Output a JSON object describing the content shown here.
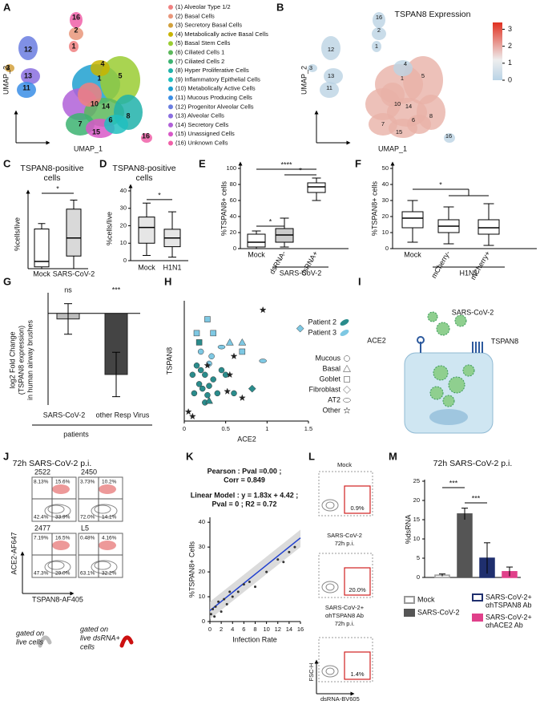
{
  "panels": {
    "a": {
      "letter": "A",
      "x_label": "UMAP_1",
      "y_label": "UMAP_2",
      "cluster_labels": [
        "16",
        "2",
        "1",
        "12",
        "3",
        "13",
        "11",
        "4",
        "1",
        "5",
        "10",
        "14",
        "6",
        "8",
        "7",
        "15",
        "16"
      ],
      "legend": [
        "(1) Alveolar Type 1/2",
        "(2) Basal Cells",
        "(3) Secretory Basal Cells",
        "(4) Metabolically active Basal Cells",
        "(5) Basal Stem Cells",
        "(6) Ciliated Cells 1",
        "(7) Ciliated Cells 2",
        "(8) Hyper Proliferative Cells",
        "(9) Inflammatory Epithelial Cells",
        "(10) Metabolically Active Cells",
        "(11) Mucous Producing Cells",
        "(12) Progenitor Alveolar Cells",
        "(13) Alveolar Cells",
        "(14) Secretory Cells",
        "(15) Unassigned Cells",
        "(16) Unknown Cells"
      ],
      "legend_colors": [
        "#f08080",
        "#e9967a",
        "#d2a03c",
        "#c8b400",
        "#9acd32",
        "#5cb85c",
        "#3cb371",
        "#20b2aa",
        "#20c0c0",
        "#1ea0d0",
        "#3a8ee6",
        "#6a7de0",
        "#8a6ee0",
        "#b060d8",
        "#d858c8",
        "#f060a8"
      ]
    },
    "b": {
      "letter": "B",
      "title": "TSPAN8 Expression",
      "x_label": "UMAP_1",
      "y_label": "UMAP_2",
      "cluster_labels": [
        "16",
        "2",
        "1",
        "12",
        "3",
        "13",
        "11",
        "4",
        "1",
        "5",
        "10",
        "14",
        "6",
        "8",
        "7",
        "15",
        "16"
      ],
      "colorbar_lim": [
        0,
        3.4
      ],
      "colorbar_ticks": [
        0,
        1,
        2,
        3
      ]
    },
    "c": {
      "letter": "C",
      "title": [
        "TSPAN8-positive",
        "cells"
      ],
      "y_label": "%cells/live",
      "categories": [
        "Mock",
        "SARS-CoV-2"
      ],
      "ylim": [
        0,
        40
      ],
      "boxes": [
        [
          0,
          1,
          4,
          22,
          25
        ],
        [
          0,
          7,
          17,
          33,
          38
        ]
      ],
      "box_colors": [
        "#ffffff",
        "#d9d9d9"
      ],
      "significance": [
        "*"
      ]
    },
    "d": {
      "letter": "D",
      "title": [
        "TSPAN8-positive",
        "cells"
      ],
      "y_label": "%cells/live",
      "categories": [
        "Mock",
        "H1N1"
      ],
      "ylim": [
        0,
        40
      ],
      "yticks": [
        0,
        10,
        20,
        30,
        40
      ],
      "boxes": [
        [
          3,
          10,
          19,
          25,
          33
        ],
        [
          2,
          8,
          13,
          18,
          28
        ]
      ],
      "box_colors": [
        "#e6e6e6",
        "#e6e6e6"
      ],
      "significance": [
        "*"
      ]
    },
    "e": {
      "letter": "E",
      "y_label": "%TSPAN8+ cells",
      "categories": [
        "Mock",
        "dsRNA-",
        "dsRNA+"
      ],
      "group": "SARS-CoV-2",
      "ylim": [
        0,
        100
      ],
      "yticks": [
        0,
        20,
        40,
        60,
        80,
        100
      ],
      "boxes": [
        [
          0,
          2,
          8,
          18,
          22
        ],
        [
          2,
          8,
          17,
          25,
          38
        ],
        [
          60,
          70,
          77,
          82,
          88
        ]
      ],
      "box_colors": [
        "#ffffff",
        "#cccccc",
        "#ffffff"
      ],
      "significance": [
        "*",
        "****",
        "*"
      ]
    },
    "f": {
      "letter": "F",
      "y_label": "%TSPAN8+ cells",
      "categories": [
        "Mock",
        "mCherry-",
        "mCherry+"
      ],
      "group": "H1N1",
      "ylim": [
        0,
        50
      ],
      "yticks": [
        0,
        10,
        20,
        30,
        40,
        50
      ],
      "boxes": [
        [
          4,
          13,
          19,
          23,
          30
        ],
        [
          3,
          10,
          14,
          18,
          26
        ],
        [
          2,
          9,
          13,
          18,
          28
        ]
      ],
      "box_colors": [
        "#ffffff",
        "#ffffff",
        "#ffffff"
      ],
      "significance": [
        "*"
      ]
    },
    "g": {
      "letter": "G",
      "y_label": [
        "log2 Fold Change",
        "(TSPAN8 expression)",
        "in human airway brushes"
      ],
      "x_label": "patients",
      "categories": [
        "SARS-CoV-2",
        "other Resp Virus"
      ],
      "values": [
        -0.2,
        -2.2
      ],
      "errors": [
        0.55,
        0.8
      ],
      "colors": [
        "#bdbdbd",
        "#444444"
      ],
      "ylim": [
        -3.3,
        0.6
      ],
      "significance": [
        "ns",
        "***"
      ]
    },
    "h": {
      "letter": "H",
      "x_label": "ACE2",
      "y_label": "TSPAN8",
      "xlim": [
        0,
        1.5
      ],
      "ylim": [
        0,
        1.3
      ],
      "xticks": [
        0,
        0.5,
        1,
        1.5
      ],
      "patients": [
        {
          "name": "Patient 2",
          "color": "#2a8c8c"
        },
        {
          "name": "Patient 3",
          "color": "#7ec8e3"
        }
      ],
      "series": [
        {
          "name": "Mucous",
          "shape": "circle",
          "x": [
            0.15,
            0.2,
            0.25,
            0.3,
            0.18,
            0.22,
            0.3,
            0.35,
            0.12,
            0.28,
            0.4,
            0.45,
            0.5,
            0.2,
            0.33,
            0.6,
            0.25,
            0.1
          ],
          "y": [
            0.6,
            0.55,
            0.5,
            0.62,
            0.4,
            0.35,
            0.38,
            0.45,
            0.3,
            0.28,
            0.3,
            0.55,
            0.5,
            0.75,
            0.7,
            0.3,
            0.2,
            0.5
          ],
          "colors": [
            "#2a8c8c",
            "#2a8c8c",
            "#2a8c8c",
            "#7ec8e3",
            "#2a8c8c",
            "#2a8c8c",
            "#2a8c8c",
            "#2a8c8c",
            "#2a8c8c",
            "#2a8c8c",
            "#2a8c8c",
            "#2a8c8c",
            "#2a8c8c",
            "#7ec8e3",
            "#7ec8e3",
            "#2a8c8c",
            "#2a8c8c",
            "#2a8c8c"
          ]
        },
        {
          "name": "Basal",
          "shape": "triangle",
          "x": [
            0.55,
            0.3,
            0.7
          ],
          "y": [
            0.85,
            0.22,
            0.85
          ],
          "colors": [
            "#7ec8e3",
            "#2a8c8c",
            "#7ec8e3"
          ]
        },
        {
          "name": "Goblet",
          "shape": "square",
          "x": [
            0.15,
            0.35,
            0.28,
            0.7,
            0.18
          ],
          "y": [
            0.95,
            0.95,
            1.1,
            0.75,
            0.85
          ],
          "colors": [
            "#7ec8e3",
            "#7ec8e3",
            "#7ec8e3",
            "#7ec8e3",
            "#2a8c8c"
          ]
        },
        {
          "name": "Fibroblast",
          "shape": "diamond",
          "x": [
            1.4,
            0.82
          ],
          "y": [
            1.0,
            0.35
          ],
          "colors": [
            "#7ec8e3",
            "#2a8c8c"
          ]
        },
        {
          "name": "AT2",
          "shape": "ellipse",
          "x": [
            0.95,
            0.45
          ],
          "y": [
            0.65,
            0.8
          ],
          "colors": [
            "#7ec8e3",
            "#7ec8e3"
          ]
        },
        {
          "name": "Other",
          "shape": "star",
          "x": [
            0.95,
            0.05,
            0.28,
            0.52,
            0.6,
            0.55,
            0.7,
            0.1
          ],
          "y": [
            1.2,
            0.1,
            0.6,
            0.32,
            0.7,
            0.5,
            0.25,
            0.05
          ],
          "colors": [
            "#222222",
            "#222222",
            "#222222",
            "#222222",
            "#222222",
            "#222222",
            "#222222",
            "#222222"
          ]
        }
      ]
    },
    "i": {
      "letter": "I",
      "virus": "SARS-CoV-2",
      "receptor_1": "ACE2",
      "receptor_2": "TSPAN8"
    },
    "j": {
      "letter": "J",
      "title": "72h SARS-CoV-2 p.i.",
      "y_label": "ACE2-AF647",
      "x_label": "TSPAN8-AF405",
      "plots": [
        {
          "name": "2522",
          "quadrants": [
            "8.13%",
            "15.6%",
            "42.4%",
            "33.9%"
          ]
        },
        {
          "name": "2450",
          "quadrants": [
            "3.73%",
            "10.2%",
            "72.0%",
            "14.1%"
          ]
        },
        {
          "name": "2477",
          "quadrants": [
            "7.19%",
            "16.5%",
            "47.3%",
            "29.0%"
          ]
        },
        {
          "name": "L5",
          "quadrants": [
            "0.48%",
            "4.16%",
            "63.1%",
            "32.2%"
          ]
        }
      ],
      "legend": [
        [
          "gated on",
          "live cells"
        ],
        [
          "gated on",
          "live dsRNA+",
          "cells"
        ]
      ]
    },
    "k": {
      "letter": "K",
      "pearson": [
        "Pearson :  Pval =0.00  ;",
        "Corr = 0.849"
      ],
      "model": [
        "Linear Model : y = 1.83x + 4.42  ;",
        "Pval = 0  ;  R2 = 0.72"
      ],
      "y_label": "%TSPAN8+ Cells",
      "x_label": "Infection Rate",
      "xlim": [
        0,
        16
      ],
      "ylim": [
        0,
        42
      ],
      "xticks": [
        0,
        2,
        4,
        6,
        8,
        10,
        12,
        14,
        16
      ],
      "yticks": [
        0,
        10,
        20,
        30,
        40
      ],
      "x": [
        0.2,
        0.5,
        0.8,
        1,
        1.5,
        2,
        2.5,
        3,
        3.5,
        4,
        5,
        6,
        7,
        8,
        10,
        12,
        13,
        14,
        15
      ],
      "y": [
        3,
        5,
        2,
        6,
        8,
        4,
        9,
        7,
        12,
        10,
        12,
        15,
        16,
        14,
        20,
        25,
        24,
        28,
        30
      ],
      "fit_x": [
        0,
        16
      ],
      "fit_y": [
        4.42,
        33.7
      ]
    },
    "l": {
      "letter": "L",
      "y_label": "FSC-H",
      "x_label": "dsRNA-BV605",
      "plots": [
        {
          "title": [
            "Mock"
          ],
          "gate": "0.9%"
        },
        {
          "title": [
            "SARS-CoV-2",
            "72h p.i."
          ],
          "gate": "20.0%"
        },
        {
          "title": [
            "SARS-CoV-2+",
            "αhTSPAN8 Ab",
            "72h p.i."
          ],
          "gate": "1.4%"
        }
      ]
    },
    "m": {
      "letter": "M",
      "title": "72h SARS-CoV-2 p.i.",
      "y_label": "%dsRNA",
      "ylim": [
        0,
        25
      ],
      "yticks": [
        0,
        5,
        10,
        15,
        20,
        25
      ],
      "series": [
        {
          "name": [
            "Mock"
          ],
          "fill": "#ffffff",
          "stroke": "#999999",
          "value": 0.6,
          "error": 0.3
        },
        {
          "name": [
            "SARS-CoV-2"
          ],
          "fill": "#555555",
          "stroke": "#555555",
          "value": 16.5,
          "error": 1.5
        },
        {
          "name": [
            "SARS-CoV-2+",
            "αhTSPAN8 Ab"
          ],
          "fill": "#1f2f6e",
          "stroke": "#1f2f6e",
          "value": 5,
          "error": 4
        },
        {
          "name": [
            "SARS-CoV-2+",
            "αhACE2 Ab"
          ],
          "fill": "#e0408a",
          "stroke": "#e0408a",
          "value": 1.5,
          "error": 1.2
        }
      ],
      "significance": [
        "***",
        "***"
      ]
    }
  }
}
